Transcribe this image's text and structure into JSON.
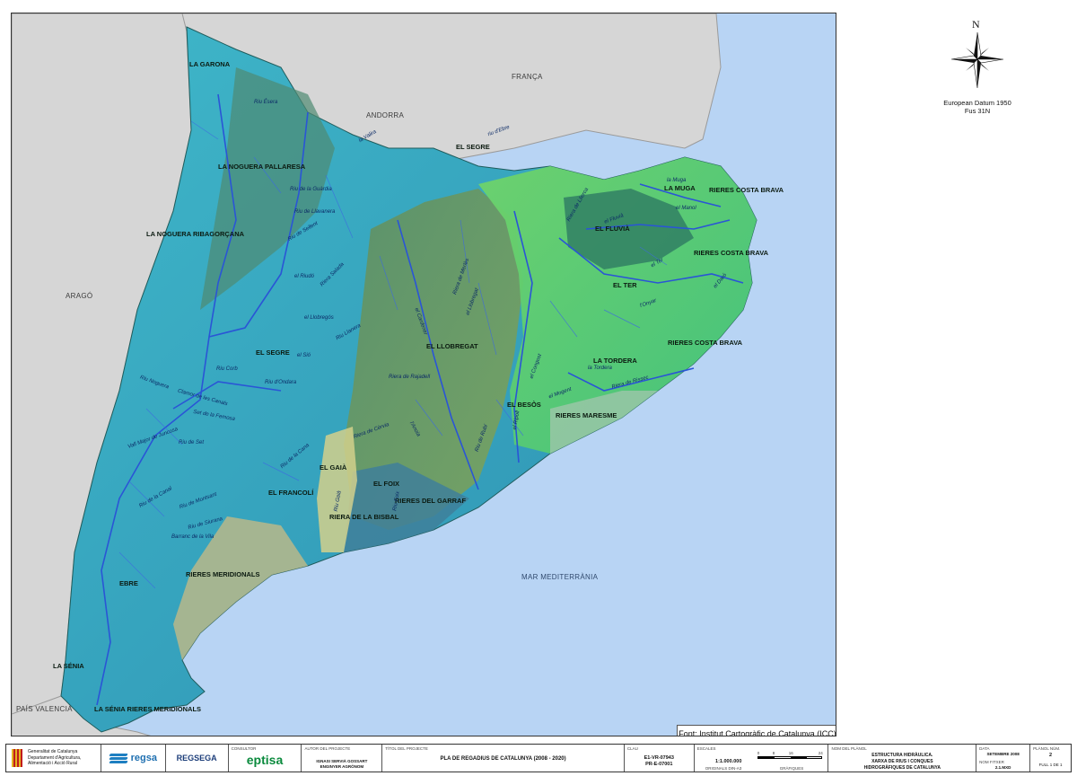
{
  "map": {
    "regions": [
      {
        "id": "la-garona",
        "label": "LA GARONA"
      },
      {
        "id": "la-noguera-pallaresa",
        "label": "LA NOGUERA PALLARESA"
      },
      {
        "id": "la-noguera-ribagorcana",
        "label": "LA NOGUERA RIBAGORÇANA"
      },
      {
        "id": "el-segre-north",
        "label": "EL SEGRE"
      },
      {
        "id": "el-segre",
        "label": "EL SEGRE"
      },
      {
        "id": "la-muga",
        "label": "LA MUGA"
      },
      {
        "id": "rieres-costa-brava-1",
        "label": "RIERES COSTA BRAVA"
      },
      {
        "id": "el-fluvia",
        "label": "EL FLUVIÀ"
      },
      {
        "id": "rieres-costa-brava-2",
        "label": "RIERES COSTA BRAVA"
      },
      {
        "id": "el-ter",
        "label": "EL TER"
      },
      {
        "id": "rieres-costa-brava-3",
        "label": "RIERES COSTA BRAVA"
      },
      {
        "id": "el-llobregat",
        "label": "EL LLOBREGAT"
      },
      {
        "id": "la-tordera",
        "label": "LA TORDERA"
      },
      {
        "id": "el-besos",
        "label": "EL BESÒS"
      },
      {
        "id": "rieres-maresme",
        "label": "RIERES MARESME"
      },
      {
        "id": "el-gaia",
        "label": "EL GAIÀ"
      },
      {
        "id": "el-foix",
        "label": "EL FOIX"
      },
      {
        "id": "el-francoli",
        "label": "EL FRANCOLÍ"
      },
      {
        "id": "rieres-del-garraf",
        "label": "RIERES DEL GARRAF"
      },
      {
        "id": "riera-de-la-bisbal",
        "label": "RIERA DE LA BISBAL"
      },
      {
        "id": "rieres-meridionals",
        "label": "RIERES MERIDIONALS"
      },
      {
        "id": "ebre",
        "label": "EBRE"
      },
      {
        "id": "la-senia",
        "label": "LA SÉNIA"
      },
      {
        "id": "la-senia-rieres",
        "label": "LA SÉNIA RIERES MERIDIONALS"
      }
    ],
    "countries": [
      {
        "id": "franca",
        "label": "FRANÇA"
      },
      {
        "id": "andorra",
        "label": "ANDORRA"
      },
      {
        "id": "arago",
        "label": "ARAGÓ"
      },
      {
        "id": "pais-valencia",
        "label": "PAÍS VALENCIÀ"
      }
    ],
    "sea": "MAR MEDITERRÀNIA",
    "rivers": [
      {
        "id": "riu-de-ebre",
        "label": "riu d'Ebre"
      },
      {
        "id": "riu-essera",
        "label": "Riu Ésera"
      },
      {
        "id": "la-valira",
        "label": "la Valira"
      },
      {
        "id": "riu-de-la-guardia",
        "label": "Riu de la Guàrdia"
      },
      {
        "id": "riu-de-llavanera",
        "label": "Riu de Llavanera"
      },
      {
        "id": "riu-de-sellent",
        "label": "Riu de Sellent"
      },
      {
        "id": "el-riudo",
        "label": "el Riudó"
      },
      {
        "id": "riera-salada",
        "label": "Riera Salada"
      },
      {
        "id": "el-llobregos",
        "label": "el Llobregós"
      },
      {
        "id": "riu-llanera",
        "label": "Riu Llanera"
      },
      {
        "id": "el-sio",
        "label": "el Sió"
      },
      {
        "id": "riu-corb",
        "label": "Riu Corb"
      },
      {
        "id": "riu-dondara",
        "label": "Riu d'Ondara"
      },
      {
        "id": "riu-noguera",
        "label": "Riu Noguera"
      },
      {
        "id": "clamor-de-les-canals",
        "label": "Clamor de les Canals"
      },
      {
        "id": "set-de-la-femosa",
        "label": "Set de la Femosa"
      },
      {
        "id": "riu-de-set",
        "label": "Riu de Set"
      },
      {
        "id": "vall-major",
        "label": "Vall Major de Juncosa"
      },
      {
        "id": "riu-de-la-canal",
        "label": "Riu de la Canal"
      },
      {
        "id": "riu-de-siurana",
        "label": "Riu de Siurana"
      },
      {
        "id": "barranc-de-la-vila",
        "label": "Barranc de la Vila"
      },
      {
        "id": "riu-de-montsant",
        "label": "Riu de Montsant"
      },
      {
        "id": "riera-de-rajadell",
        "label": "Riera de Rajadell"
      },
      {
        "id": "riera-de-cervia",
        "label": "Riera de Cèrvia"
      },
      {
        "id": "lanoia",
        "label": "l'Anoia"
      },
      {
        "id": "riu-de-rubi",
        "label": "Riu de Rubí"
      },
      {
        "id": "el-llobregat-riv",
        "label": "el Llobregat"
      },
      {
        "id": "el-cardener",
        "label": "el Cardener"
      },
      {
        "id": "riera-de-merles",
        "label": "Riera de Merlès"
      },
      {
        "id": "el-ripoll",
        "label": "el Ripoll"
      },
      {
        "id": "el-congost",
        "label": "el Congost"
      },
      {
        "id": "el-mogent",
        "label": "el Mogent"
      },
      {
        "id": "la-tordera-riv",
        "label": "la Tordera"
      },
      {
        "id": "riera-de-rissec",
        "label": "Riera de Rissec"
      },
      {
        "id": "el-ter-riv",
        "label": "el Ter"
      },
      {
        "id": "el-fluvia-riv",
        "label": "el Fluvià"
      },
      {
        "id": "el-onyar",
        "label": "l'Onyar"
      },
      {
        "id": "el-daro",
        "label": "el Daró"
      },
      {
        "id": "la-muga-riv",
        "label": "la Muga"
      },
      {
        "id": "el-manol",
        "label": "el Manol"
      },
      {
        "id": "riera-de-llierca",
        "label": "Riera de Llierca"
      },
      {
        "id": "riu-gaia",
        "label": "Riu Gaià"
      },
      {
        "id": "riu-foix",
        "label": "Riu Foix"
      },
      {
        "id": "riu-de-la-cana",
        "label": "Riu de la Cana"
      }
    ],
    "source_note": "Font: Institut Cartogràfic de Catalunya (ICC)",
    "colors": {
      "sea": "#b8d4f4",
      "land_outside": "#d6d6d6",
      "river": "#2a55d6"
    }
  },
  "legend_panel": {
    "north": "N",
    "datum_line1": "European Datum 1950",
    "datum_line2": "Fus 31N"
  },
  "title_block": {
    "generalitat_line1": "Generalitat de Catalunya",
    "generalitat_line2": "Departament d'Agricultura,",
    "generalitat_line3": "Alimentació i Acció Rural",
    "regsa": "regsa",
    "regsega": "REGSEGA",
    "consultor_caption": "Consultor",
    "consultor": "eptisa",
    "autor_caption": "Autor del projecte",
    "autor_line1": "IGNASI SERVIÀ GOSSART",
    "autor_line2": "ENGINYER AGRÒNOM",
    "titol_caption": "Títol del projecte",
    "titol": "PLA DE REGADIUS DE CATALUNYA (2008 - 2020)",
    "clau_caption": "Clau",
    "clau_line1": "E1-VR-07943",
    "clau_line2": "PR-E-07001",
    "escala_caption": "Escales",
    "escala": "1:1.000.000",
    "escala_originals": "Originals DIN-A3",
    "escala_grafiques": "Gràfiques",
    "scale_ticks": [
      "0",
      "8",
      "16",
      "24"
    ],
    "nom_caption": "Nom del plànol",
    "nom_line1": "ESTRUCTURA HIDRÀULICA.",
    "nom_line2": "XARXA DE RIUS I CONQUES",
    "nom_line3": "HIDROGRÀFIQUES DE CATALUNYA",
    "data_caption": "Data",
    "data": "SETEMBRE 2008",
    "fitxer_caption": "Nom fitxer",
    "fitxer": "2.1.MXD",
    "plano_caption": "Plànol núm.",
    "plano": "2",
    "full": "FULL 1 DE 1"
  }
}
